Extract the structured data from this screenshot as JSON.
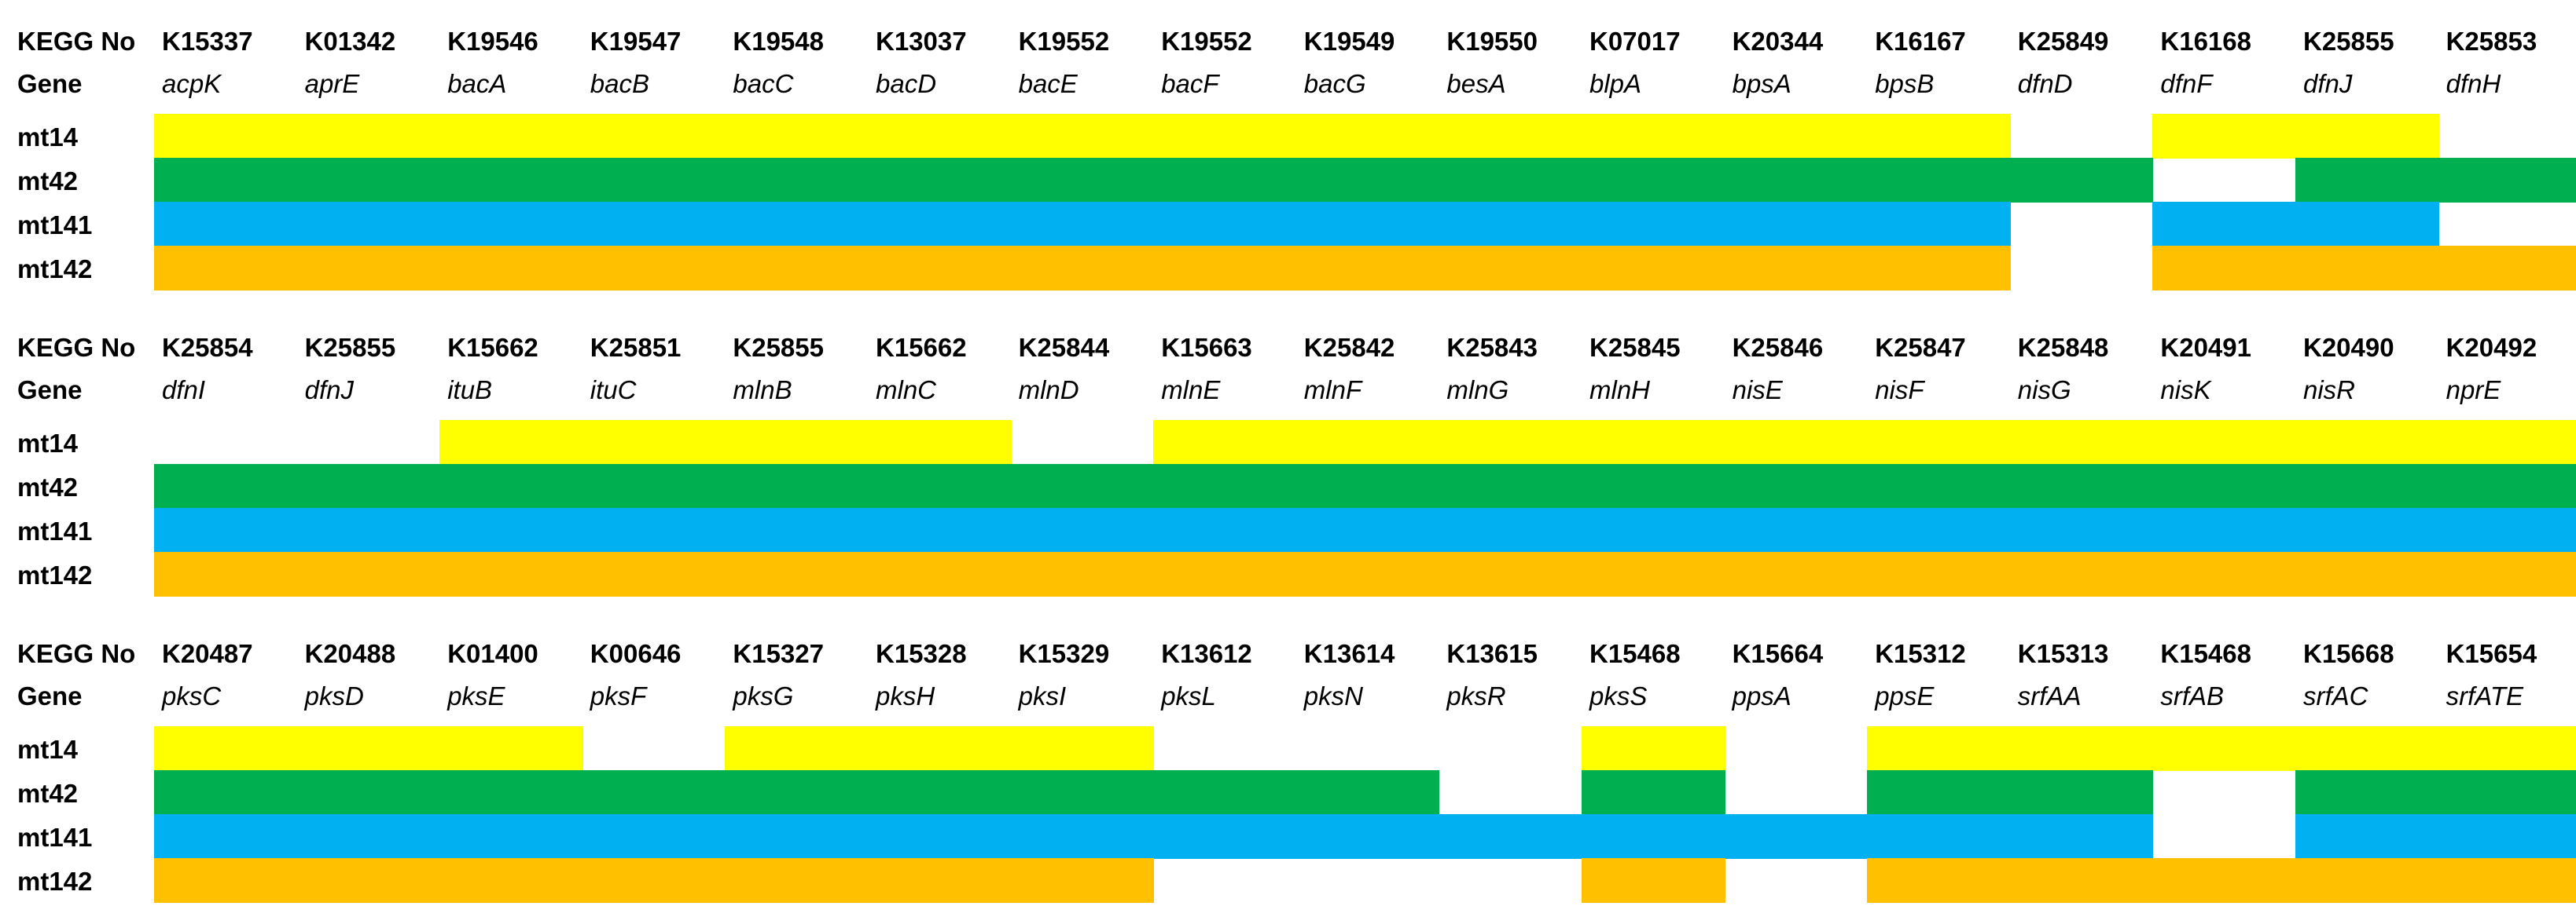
{
  "chart_data": {
    "type": "table",
    "row_header_kegg": "KEGG No",
    "row_header_gene": "Gene",
    "samples": [
      "mt14",
      "mt42",
      "mt141",
      "mt142"
    ],
    "colors": {
      "mt14": "#FFFF00",
      "mt42": "#00B050",
      "mt141": "#00B0F0",
      "mt142": "#FFC000"
    },
    "blocks": [
      {
        "kegg": [
          "K15337",
          "K01342",
          "K19546",
          "K19547",
          "K19548",
          "K13037",
          "K19552",
          "K19552",
          "K19549",
          "K19550",
          "K07017",
          "K20344",
          "K16167",
          "K25849",
          "K16168",
          "K25855",
          "K25853"
        ],
        "genes": [
          "acpK",
          "aprE",
          "bacA",
          "bacB",
          "bacC",
          "bacD",
          "bacE",
          "bacF",
          "bacG",
          "besA",
          "blpA",
          "bpsA",
          "bpsB",
          "dfnD",
          "dfnF",
          "dfnJ",
          "dfnH"
        ],
        "presence": {
          "mt14": [
            1,
            1,
            1,
            1,
            1,
            1,
            1,
            1,
            1,
            1,
            1,
            1,
            1,
            0,
            1,
            1,
            0
          ],
          "mt42": [
            1,
            1,
            1,
            1,
            1,
            1,
            1,
            1,
            1,
            1,
            1,
            1,
            1,
            1,
            0,
            1,
            1
          ],
          "mt141": [
            1,
            1,
            1,
            1,
            1,
            1,
            1,
            1,
            1,
            1,
            1,
            1,
            1,
            0,
            1,
            1,
            0
          ],
          "mt142": [
            1,
            1,
            1,
            1,
            1,
            1,
            1,
            1,
            1,
            1,
            1,
            1,
            1,
            0,
            1,
            1,
            1
          ]
        }
      },
      {
        "kegg": [
          "K25854",
          "K25855",
          "K15662",
          "K25851",
          "K25855",
          "K15662",
          "K25844",
          "K15663",
          "K25842",
          "K25843",
          "K25845",
          "K25846",
          "K25847",
          "K25848",
          "K20491",
          "K20490",
          "K20492"
        ],
        "genes": [
          "dfnI",
          "dfnJ",
          "ituB",
          "ituC",
          "mlnB",
          "mlnC",
          "mlnD",
          "mlnE",
          "mlnF",
          "mlnG",
          "mlnH",
          "nisE",
          "nisF",
          "nisG",
          "nisK",
          "nisR",
          "nprE"
        ],
        "presence": {
          "mt14": [
            0,
            0,
            1,
            1,
            1,
            1,
            0,
            1,
            1,
            1,
            1,
            1,
            1,
            1,
            1,
            1,
            1
          ],
          "mt42": [
            1,
            1,
            1,
            1,
            1,
            1,
            1,
            1,
            1,
            1,
            1,
            1,
            1,
            1,
            1,
            1,
            1
          ],
          "mt141": [
            1,
            1,
            1,
            1,
            1,
            1,
            1,
            1,
            1,
            1,
            1,
            1,
            1,
            1,
            1,
            1,
            1
          ],
          "mt142": [
            1,
            1,
            1,
            1,
            1,
            1,
            1,
            1,
            1,
            1,
            1,
            1,
            1,
            1,
            1,
            1,
            1
          ]
        }
      },
      {
        "kegg": [
          "K20487",
          "K20488",
          "K01400",
          "K00646",
          "K15327",
          "K15328",
          "K15329",
          "K13612",
          "K13614",
          "K13615",
          "K15468",
          "K15664",
          "K15312",
          "K15313",
          "K15468",
          "K15668",
          "K15654"
        ],
        "genes": [
          "pksC",
          "pksD",
          "pksE",
          "pksF",
          "pksG",
          "pksH",
          "pksI",
          "pksL",
          "pksN",
          "pksR",
          "pksS",
          "ppsA",
          "ppsE",
          "srfAA",
          "srfAB",
          "srfAC",
          "srfATE"
        ],
        "presence": {
          "mt14": [
            1,
            1,
            1,
            0,
            1,
            1,
            1,
            0,
            0,
            0,
            1,
            0,
            1,
            1,
            1,
            1,
            1
          ],
          "mt42": [
            1,
            1,
            1,
            1,
            1,
            1,
            1,
            1,
            1,
            0,
            1,
            0,
            1,
            1,
            0,
            1,
            1
          ],
          "mt141": [
            1,
            1,
            1,
            1,
            1,
            1,
            1,
            1,
            1,
            1,
            1,
            1,
            1,
            1,
            0,
            1,
            1
          ],
          "mt142": [
            1,
            1,
            1,
            1,
            1,
            1,
            1,
            0,
            0,
            0,
            1,
            0,
            1,
            1,
            1,
            1,
            1
          ]
        }
      }
    ]
  }
}
